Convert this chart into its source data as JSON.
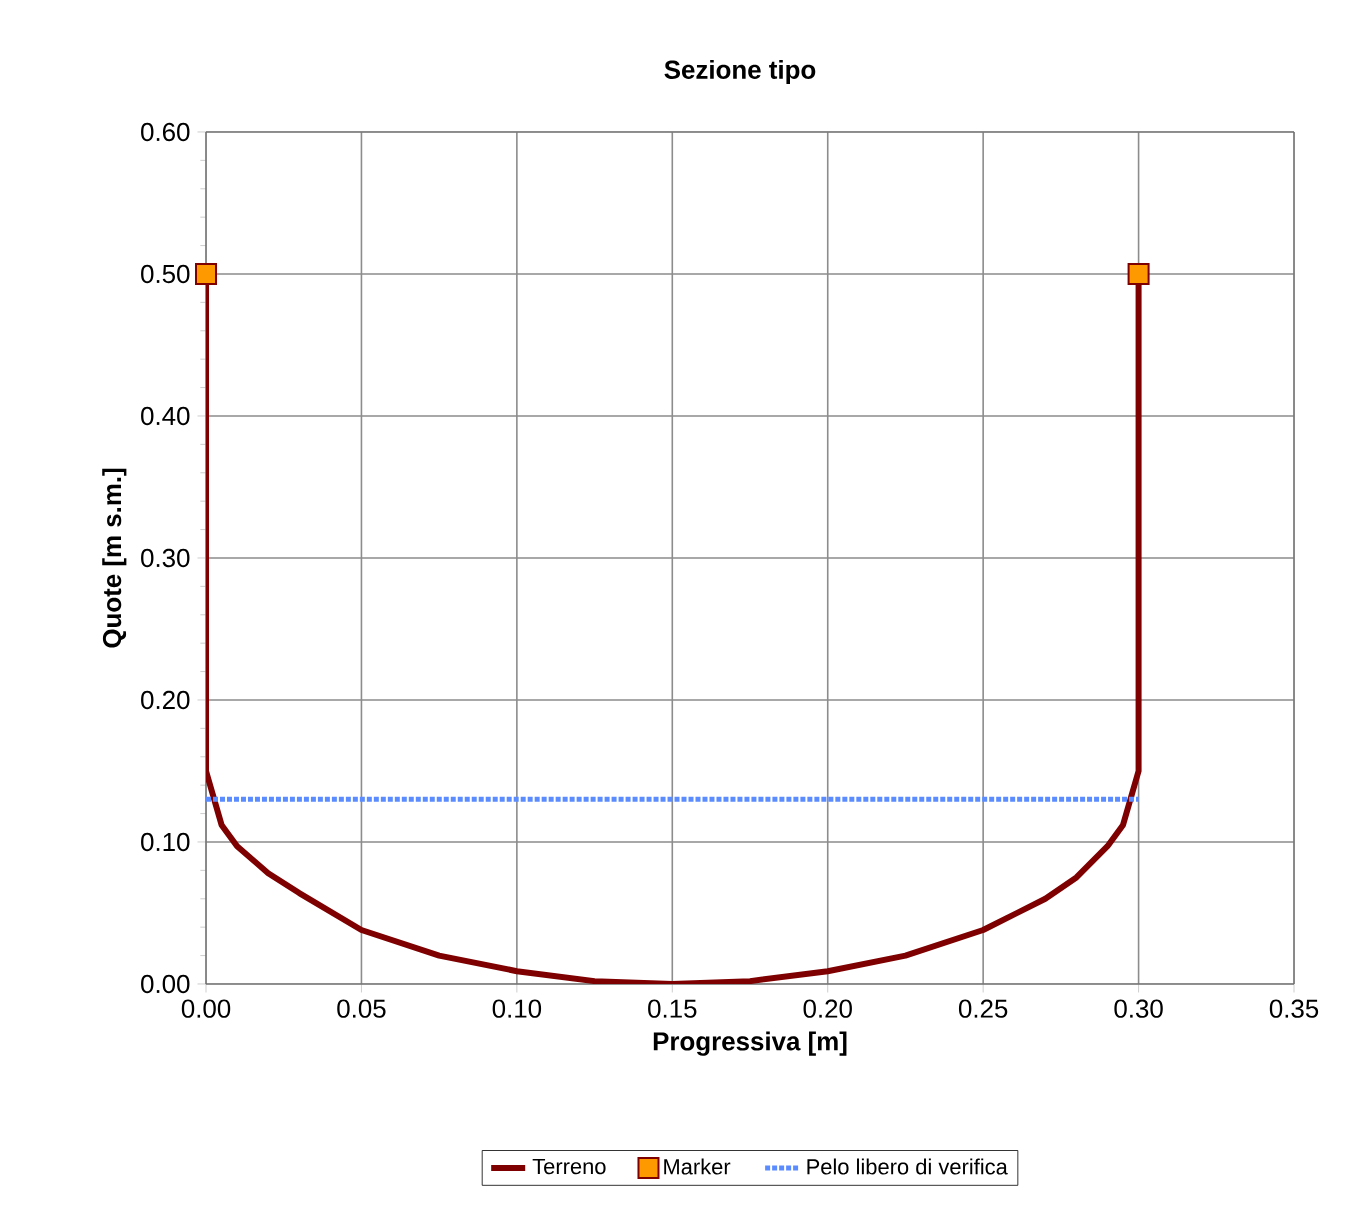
{
  "chart_data": {
    "type": "line",
    "title": "Sezione tipo",
    "xlabel": "Progressiva [m]",
    "ylabel": "Quote [m s.m.]",
    "xlim": [
      0,
      0.35
    ],
    "ylim": [
      0,
      0.6
    ],
    "xticks": [
      {
        "value": 0,
        "label": "0.00"
      },
      {
        "value": 0.05,
        "label": "0.05"
      },
      {
        "value": 0.1,
        "label": "0.10"
      },
      {
        "value": 0.15,
        "label": "0.15"
      },
      {
        "value": 0.2,
        "label": "0.20"
      },
      {
        "value": 0.25,
        "label": "0.25"
      },
      {
        "value": 0.3,
        "label": "0.30"
      },
      {
        "value": 0.35,
        "label": "0.35"
      }
    ],
    "yticks": [
      {
        "value": 0,
        "label": "0.00"
      },
      {
        "value": 0.1,
        "label": "0.10"
      },
      {
        "value": 0.2,
        "label": "0.20"
      },
      {
        "value": 0.3,
        "label": "0.30"
      },
      {
        "value": 0.4,
        "label": "0.40"
      },
      {
        "value": 0.5,
        "label": "0.50"
      },
      {
        "value": 0.6,
        "label": "0.60"
      }
    ],
    "grid": true,
    "legend": "bottom",
    "series": [
      {
        "name": "Terreno",
        "color": "#7f0000",
        "marker": "none",
        "line_style": "solid",
        "x": [
          0,
          0,
          0.005,
          0.01,
          0.02,
          0.03,
          0.05,
          0.075,
          0.1,
          0.125,
          0.15,
          0.175,
          0.2,
          0.225,
          0.25,
          0.27,
          0.28,
          0.29,
          0.295,
          0.3,
          0.3
        ],
        "values": [
          0.5,
          0.15,
          0.112,
          0.097,
          0.078,
          0.064,
          0.038,
          0.02,
          0.009,
          0.002,
          0,
          0.002,
          0.009,
          0.02,
          0.038,
          0.06,
          0.075,
          0.097,
          0.112,
          0.15,
          0.5
        ]
      },
      {
        "name": "Marker",
        "type": "scatter",
        "color": "#ff9900",
        "marker": "square",
        "x": [
          0,
          0.3
        ],
        "values": [
          0.5,
          0.5
        ]
      },
      {
        "name": "Pelo libero di verifica",
        "type": "line",
        "color": "#5b8cff",
        "marker": "none",
        "line_style": "dotted",
        "x": [
          0,
          0.3
        ],
        "values": [
          0.13,
          0.13
        ]
      }
    ]
  }
}
